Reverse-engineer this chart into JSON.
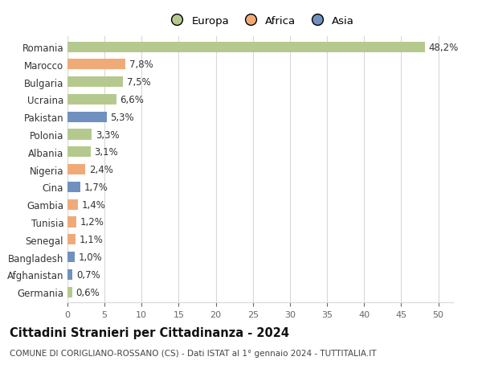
{
  "countries": [
    "Romania",
    "Marocco",
    "Bulgaria",
    "Ucraina",
    "Pakistan",
    "Polonia",
    "Albania",
    "Nigeria",
    "Cina",
    "Gambia",
    "Tunisia",
    "Senegal",
    "Bangladesh",
    "Afghanistan",
    "Germania"
  ],
  "values": [
    48.2,
    7.8,
    7.5,
    6.6,
    5.3,
    3.3,
    3.1,
    2.4,
    1.7,
    1.4,
    1.2,
    1.1,
    1.0,
    0.7,
    0.6
  ],
  "labels": [
    "48,2%",
    "7,8%",
    "7,5%",
    "6,6%",
    "5,3%",
    "3,3%",
    "3,1%",
    "2,4%",
    "1,7%",
    "1,4%",
    "1,2%",
    "1,1%",
    "1,0%",
    "0,7%",
    "0,6%"
  ],
  "continents": [
    "Europa",
    "Africa",
    "Europa",
    "Europa",
    "Asia",
    "Europa",
    "Europa",
    "Africa",
    "Asia",
    "Africa",
    "Africa",
    "Africa",
    "Asia",
    "Asia",
    "Europa"
  ],
  "colors": {
    "Europa": "#b5c98e",
    "Africa": "#f0aa78",
    "Asia": "#7090c0"
  },
  "xlim": [
    0,
    52
  ],
  "xticks": [
    0,
    5,
    10,
    15,
    20,
    25,
    30,
    35,
    40,
    45,
    50
  ],
  "title": "Cittadini Stranieri per Cittadinanza - 2024",
  "subtitle": "COMUNE DI CORIGLIANO-ROSSANO (CS) - Dati ISTAT al 1° gennaio 2024 - TUTTITALIA.IT",
  "bg_color": "#ffffff",
  "grid_color": "#d8d8d8",
  "bar_height": 0.6,
  "label_fontsize": 8.5,
  "ytick_fontsize": 8.5,
  "xtick_fontsize": 8,
  "title_fontsize": 10.5,
  "subtitle_fontsize": 7.5
}
